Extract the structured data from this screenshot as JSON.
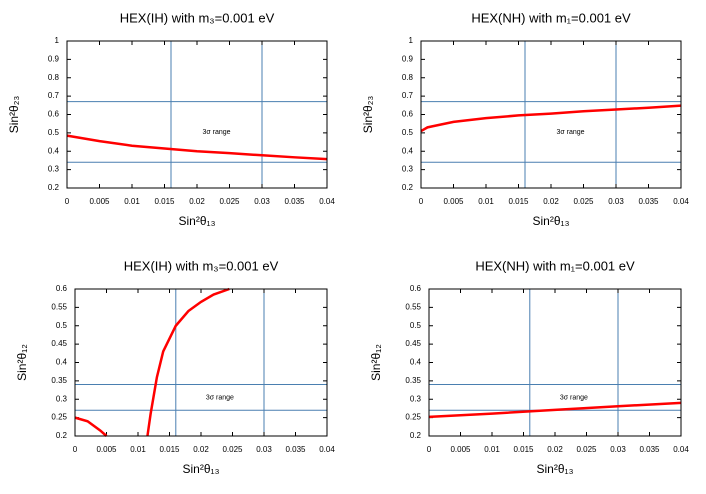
{
  "chart_data": [
    {
      "type": "line",
      "title": "HEX(IH) with m₃=0.001 eV",
      "x_label": "Sin²θ₁₃",
      "y_label": "Sin²θ₂₃",
      "annotation": "3σ range",
      "series": [
        {
          "color": "#ff0000",
          "x": [
            0,
            0.005,
            0.01,
            0.015,
            0.02,
            0.025,
            0.03,
            0.035,
            0.04
          ],
          "values": [
            0.485,
            0.455,
            0.43,
            0.415,
            0.4,
            0.39,
            0.378,
            0.367,
            0.357
          ]
        }
      ],
      "xlim": [
        0,
        0.04
      ],
      "xticks": [
        0,
        0.005,
        0.01,
        0.015,
        0.02,
        0.025,
        0.03,
        0.035,
        0.04
      ],
      "ylim": [
        0.2,
        1
      ],
      "yticks": [
        0.2,
        0.3,
        0.4,
        0.5,
        0.6,
        0.7,
        0.8,
        0.9,
        1
      ],
      "vlines": [
        0.016,
        0.03
      ],
      "hlines": [
        0.34,
        0.67
      ],
      "refline_color": "#4a7fb0"
    },
    {
      "type": "line",
      "title": "HEX(NH) with m₁=0.001 eV",
      "x_label": "Sin²θ₁₃",
      "y_label": "Sin²θ₂₃",
      "annotation": "3σ range",
      "series": [
        {
          "color": "#ff0000",
          "x": [
            0,
            0.001,
            0.005,
            0.01,
            0.015,
            0.02,
            0.025,
            0.03,
            0.035,
            0.04
          ],
          "values": [
            0.51,
            0.53,
            0.56,
            0.58,
            0.595,
            0.605,
            0.618,
            0.627,
            0.637,
            0.648
          ]
        }
      ],
      "xlim": [
        0,
        0.04
      ],
      "xticks": [
        0,
        0.005,
        0.01,
        0.015,
        0.02,
        0.025,
        0.03,
        0.035,
        0.04
      ],
      "ylim": [
        0.2,
        1
      ],
      "yticks": [
        0.2,
        0.3,
        0.4,
        0.5,
        0.6,
        0.7,
        0.8,
        0.9,
        1
      ],
      "vlines": [
        0.016,
        0.03
      ],
      "hlines": [
        0.34,
        0.67
      ],
      "refline_color": "#4a7fb0"
    },
    {
      "type": "line",
      "title": "HEX(IH) with m₃=0.001 eV",
      "x_label": "Sin²θ₁₃",
      "y_label": "Sin²θ₁₂",
      "annotation": "3σ range",
      "series": [
        {
          "color": "#ff0000",
          "x": [
            0,
            0.002,
            0.004,
            0.005,
            0.008,
            0.0115,
            0.012,
            0.013,
            0.014,
            0.016,
            0.018,
            0.02,
            0.022,
            0.0245
          ],
          "values": [
            0.25,
            0.24,
            0.215,
            0.2,
            null,
            0.2,
            0.26,
            0.36,
            0.43,
            0.5,
            0.54,
            0.565,
            0.585,
            0.6
          ]
        }
      ],
      "xlim": [
        0,
        0.04
      ],
      "xticks": [
        0,
        0.005,
        0.01,
        0.015,
        0.02,
        0.025,
        0.03,
        0.035,
        0.04
      ],
      "ylim": [
        0.2,
        0.6
      ],
      "yticks": [
        0.2,
        0.25,
        0.3,
        0.35,
        0.4,
        0.45,
        0.5,
        0.55,
        0.6
      ],
      "vlines": [
        0.016,
        0.03
      ],
      "hlines": [
        0.27,
        0.34
      ],
      "refline_color": "#4a7fb0"
    },
    {
      "type": "line",
      "title": "HEX(NH) with m₁=0.001 eV",
      "x_label": "Sin²θ₁₃",
      "y_label": "Sin²θ₁₂",
      "annotation": "3σ range",
      "series": [
        {
          "color": "#ff0000",
          "x": [
            0,
            0.01,
            0.02,
            0.03,
            0.04
          ],
          "values": [
            0.252,
            0.261,
            0.271,
            0.281,
            0.29
          ]
        }
      ],
      "xlim": [
        0,
        0.04
      ],
      "xticks": [
        0,
        0.005,
        0.01,
        0.015,
        0.02,
        0.025,
        0.03,
        0.035,
        0.04
      ],
      "ylim": [
        0.2,
        0.6
      ],
      "yticks": [
        0.2,
        0.25,
        0.3,
        0.35,
        0.4,
        0.45,
        0.5,
        0.55,
        0.6
      ],
      "vlines": [
        0.016,
        0.03
      ],
      "hlines": [
        0.27,
        0.34
      ],
      "refline_color": "#4a7fb0"
    }
  ]
}
